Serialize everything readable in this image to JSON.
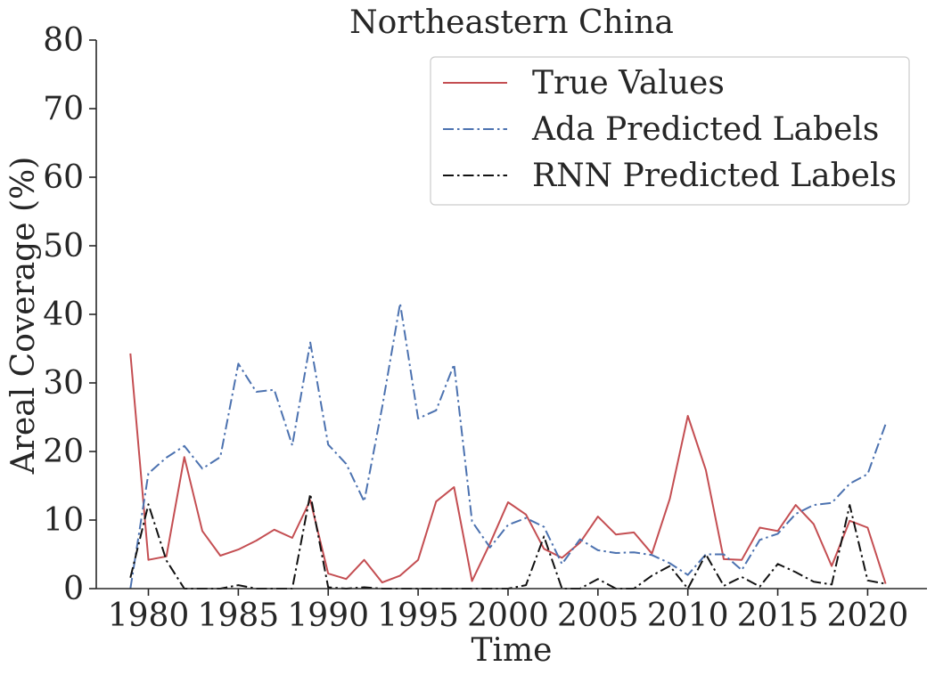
{
  "chart_data": {
    "type": "line",
    "title": "Northeastern China",
    "xlabel": "Time",
    "ylabel": "Areal Coverage (%)",
    "xlim": [
      1977.1,
      2023.3
    ],
    "ylim": [
      0,
      80
    ],
    "x_ticks": [
      1980,
      1985,
      1990,
      1995,
      2000,
      2005,
      2010,
      2015,
      2020
    ],
    "x_tick_labels": [
      "1980",
      "1985",
      "1990",
      "1995",
      "2000",
      "2005",
      "2010",
      "2015",
      "2020"
    ],
    "y_ticks": [
      0,
      10,
      20,
      30,
      40,
      50,
      60,
      70,
      80
    ],
    "y_tick_labels": [
      "0",
      "10",
      "20",
      "30",
      "40",
      "50",
      "60",
      "70",
      "80"
    ],
    "grid": false,
    "legend_position": "top-right",
    "x": [
      1979,
      1980,
      1981,
      1982,
      1983,
      1984,
      1985,
      1986,
      1987,
      1988,
      1989,
      1990,
      1991,
      1992,
      1993,
      1994,
      1995,
      1996,
      1997,
      1998,
      1999,
      2000,
      2001,
      2002,
      2003,
      2004,
      2005,
      2006,
      2007,
      2008,
      2009,
      2010,
      2011,
      2012,
      2013,
      2014,
      2015,
      2016,
      2017,
      2018,
      2019,
      2020,
      2021
    ],
    "series": [
      {
        "name": "True Values",
        "color": "#c44e52",
        "style": "solid",
        "values": [
          34.3,
          4.2,
          4.7,
          19.2,
          8.4,
          4.8,
          5.7,
          7.0,
          8.6,
          7.4,
          12.9,
          2.2,
          1.4,
          4.2,
          0.9,
          1.9,
          4.2,
          12.7,
          14.8,
          1.1,
          6.6,
          12.6,
          10.8,
          5.8,
          4.5,
          6.7,
          10.5,
          7.9,
          8.2,
          5.1,
          13.1,
          25.2,
          17.3,
          4.3,
          4.2,
          8.9,
          8.4,
          12.2,
          9.4,
          3.3,
          9.9,
          8.9,
          0.7
        ]
      },
      {
        "name": "Ada Predicted Labels",
        "color": "#4c72b0",
        "style": "dashdot",
        "values": [
          0.0,
          16.8,
          19.1,
          20.8,
          17.5,
          19.2,
          32.8,
          28.7,
          29.0,
          20.9,
          35.9,
          21.0,
          18.2,
          12.7,
          26.5,
          41.6,
          24.8,
          26.0,
          32.7,
          9.8,
          6.0,
          9.3,
          10.3,
          9.0,
          3.6,
          7.2,
          5.6,
          5.2,
          5.3,
          4.9,
          3.7,
          2.0,
          5.0,
          5.0,
          2.7,
          7.1,
          8.0,
          10.9,
          12.2,
          12.5,
          15.3,
          16.7,
          24.0
        ]
      },
      {
        "name": "RNN Predicted Labels",
        "color": "#111111",
        "style": "dashdot",
        "values": [
          1.6,
          12.3,
          4.1,
          0.0,
          0.0,
          0.0,
          0.5,
          0.0,
          0.0,
          0.0,
          13.8,
          0.2,
          0.0,
          0.2,
          0.0,
          0.0,
          0.0,
          0.0,
          0.0,
          0.0,
          0.0,
          0.0,
          0.5,
          7.6,
          0.0,
          0.0,
          1.4,
          0.0,
          0.0,
          1.9,
          3.3,
          0.0,
          5.0,
          0.4,
          1.7,
          0.3,
          3.6,
          2.4,
          1.0,
          0.6,
          12.2,
          1.2,
          0.7
        ]
      }
    ]
  }
}
